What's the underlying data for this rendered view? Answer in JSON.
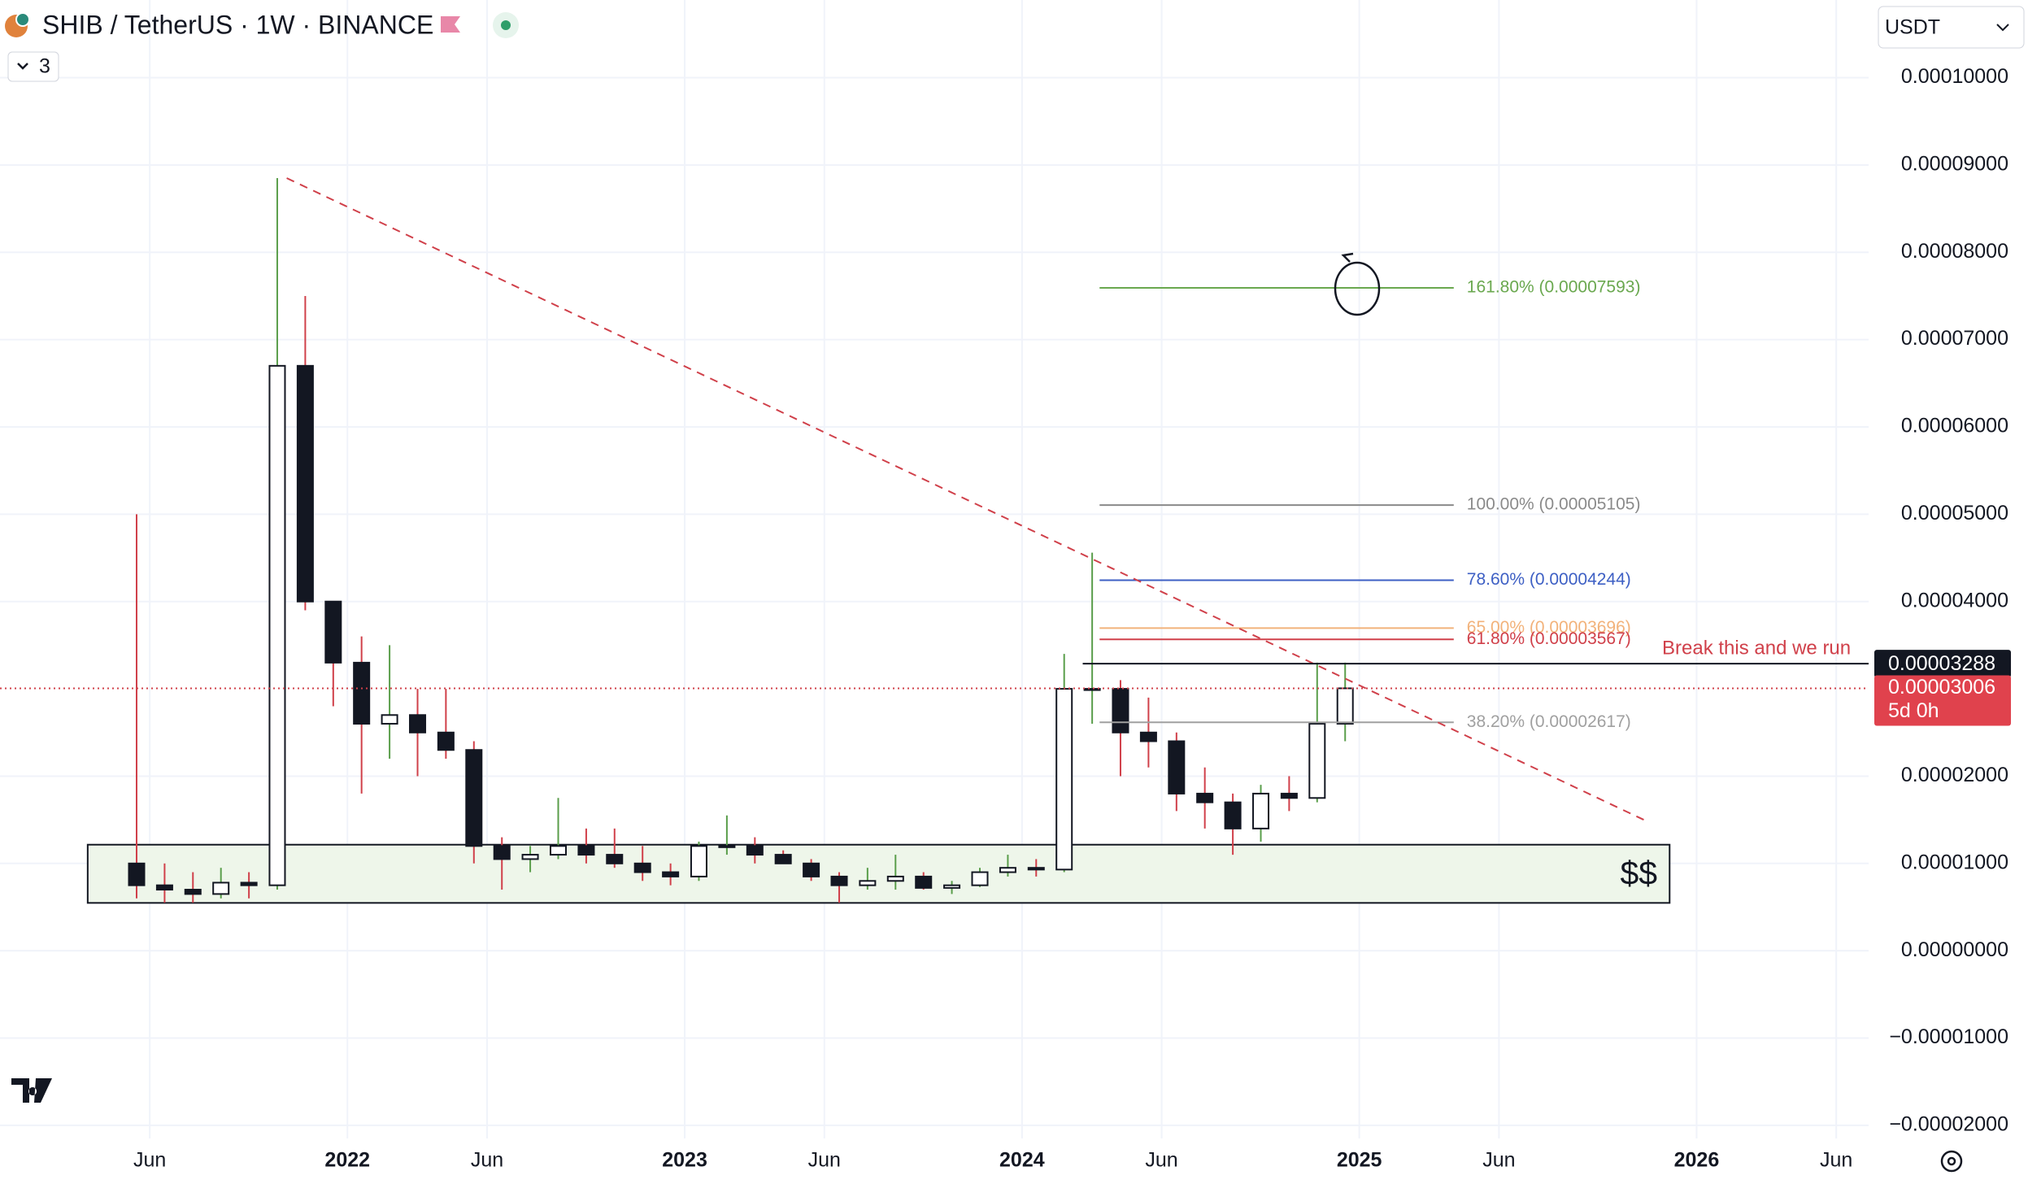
{
  "chart_data": {
    "type": "candlestick",
    "title": "SHIB / TetherUS · 1W · BINANCE",
    "indicator_count": "3",
    "currency": "USDT",
    "grid": true,
    "xlim": [
      2020.97,
      2026.51
    ],
    "ylim": [
      -2.15e-05,
      0.0001089
    ],
    "xticks": [
      {
        "value": 2021.414,
        "label": "Jun"
      },
      2022,
      {
        "value": 2022.414,
        "label": "Jun"
      },
      2023,
      {
        "value": 2023.414,
        "label": "Jun"
      },
      2024,
      {
        "value": 2024.414,
        "label": "Jun"
      },
      2025,
      {
        "value": 2025.414,
        "label": "Jun"
      },
      2026,
      {
        "value": 2026.414,
        "label": "Jun"
      }
    ],
    "yticks": [
      {
        "value": 0.0001,
        "label": "0.00010000"
      },
      {
        "value": 9e-05,
        "label": "0.00009000"
      },
      {
        "value": 8e-05,
        "label": "0.00008000"
      },
      {
        "value": 7e-05,
        "label": "0.00007000"
      },
      {
        "value": 6e-05,
        "label": "0.00006000"
      },
      {
        "value": 5e-05,
        "label": "0.00005000"
      },
      {
        "value": 4e-05,
        "label": "0.00004000"
      },
      {
        "value": 2e-05,
        "label": "0.00002000"
      },
      {
        "value": 1e-05,
        "label": "0.00001000"
      },
      {
        "value": 0,
        "label": "0.00000000"
      },
      {
        "value": -1e-05,
        "label": "−0.00001000"
      },
      {
        "value": -2e-05,
        "label": "−0.00002000"
      }
    ],
    "up_color": "#5a9e4b",
    "down_color": "#d0404a",
    "candles": {
      "x": [
        2021.375,
        2021.458,
        2021.542,
        2021.625,
        2021.708,
        2021.792,
        2021.875,
        2021.958,
        2022.042,
        2022.125,
        2022.208,
        2022.292,
        2022.375,
        2022.458,
        2022.542,
        2022.625,
        2022.708,
        2022.792,
        2022.875,
        2022.958,
        2023.042,
        2023.125,
        2023.208,
        2023.292,
        2023.375,
        2023.458,
        2023.542,
        2023.625,
        2023.708,
        2023.792,
        2023.875,
        2023.958,
        2024.042,
        2024.125,
        2024.208,
        2024.292,
        2024.375,
        2024.458,
        2024.542,
        2024.625,
        2024.708,
        2024.792,
        2024.875,
        2024.958
      ],
      "open": [
        1e-05,
        7.5e-06,
        7e-06,
        6.5e-06,
        7.8e-06,
        7.5e-06,
        6.7e-05,
        4e-05,
        3.3e-05,
        2.6e-05,
        2.7e-05,
        2.5e-05,
        2.3e-05,
        1.2e-05,
        1.05e-05,
        1.1e-05,
        1.2e-05,
        1.1e-05,
        1e-05,
        9e-06,
        8.5e-06,
        1.2e-05,
        1.2e-05,
        1.1e-05,
        1e-05,
        8.5e-06,
        7.5e-06,
        8e-06,
        8.5e-06,
        7.2e-06,
        7.5e-06,
        9e-06,
        9.5e-06,
        9.3e-06,
        3e-05,
        3e-05,
        2.5e-05,
        2.4e-05,
        1.8e-05,
        1.7e-05,
        1.4e-05,
        1.8e-05,
        1.75e-05,
        2.6e-05
      ],
      "high": [
        5e-05,
        1e-05,
        9e-06,
        9.5e-06,
        9e-06,
        8.85e-05,
        7.5e-05,
        4e-05,
        3.6e-05,
        3.5e-05,
        3e-05,
        3e-05,
        2.4e-05,
        1.3e-05,
        1.2e-05,
        1.75e-05,
        1.4e-05,
        1.4e-05,
        1.2e-05,
        1e-05,
        1.25e-05,
        1.55e-05,
        1.3e-05,
        1.15e-05,
        1.05e-05,
        9e-06,
        9.5e-06,
        1.1e-05,
        9e-06,
        8e-06,
        9.5e-06,
        1.1e-05,
        1.05e-05,
        3.4e-05,
        4.56e-05,
        3.1e-05,
        2.9e-05,
        2.5e-05,
        2.1e-05,
        1.8e-05,
        1.9e-05,
        2e-05,
        3.3e-05,
        3.3e-05
      ],
      "low": [
        6e-06,
        5.5e-06,
        5.5e-06,
        6e-06,
        6e-06,
        7e-06,
        3.9e-05,
        2.8e-05,
        1.8e-05,
        2.2e-05,
        2e-05,
        2.2e-05,
        1e-05,
        7e-06,
        9e-06,
        1.05e-05,
        1e-05,
        9.5e-06,
        8e-06,
        7.5e-06,
        8e-06,
        1.1e-05,
        1e-05,
        1e-05,
        8e-06,
        5.5e-06,
        7e-06,
        7e-06,
        7e-06,
        6.5e-06,
        7.3e-06,
        8.5e-06,
        8.5e-06,
        9e-06,
        2.6e-05,
        2e-05,
        2.1e-05,
        1.6e-05,
        1.4e-05,
        1.1e-05,
        1.25e-05,
        1.6e-05,
        1.7e-05,
        2.4e-05
      ],
      "close": [
        7.5e-06,
        7e-06,
        6.5e-06,
        7.8e-06,
        7.5e-06,
        6.7e-05,
        4e-05,
        3.3e-05,
        2.6e-05,
        2.7e-05,
        2.5e-05,
        2.3e-05,
        1.2e-05,
        1.05e-05,
        1.1e-05,
        1.2e-05,
        1.1e-05,
        1e-05,
        9e-06,
        8.5e-06,
        1.2e-05,
        1.2e-05,
        1.1e-05,
        1e-05,
        8.5e-06,
        7.5e-06,
        8e-06,
        8.5e-06,
        7.2e-06,
        7.5e-06,
        9e-06,
        9.5e-06,
        9.3e-06,
        3e-05,
        3e-05,
        2.5e-05,
        2.4e-05,
        1.8e-05,
        1.7e-05,
        1.4e-05,
        1.8e-05,
        1.75e-05,
        2.6e-05,
        3.006e-05
      ]
    },
    "trendline": {
      "x": [
        2021.82,
        2025.86
      ],
      "y": [
        8.85e-05,
        1.47e-05
      ],
      "color": "#d0404a"
    },
    "zone": {
      "x": [
        2021.23,
        2025.92
      ],
      "y": [
        5.48e-06,
        1.215e-05
      ],
      "label": "$$"
    },
    "fib": {
      "x": [
        2024.23,
        2025.28
      ],
      "levels": [
        {
          "value": 7.593e-05,
          "label": "161.80% (0.00007593)",
          "color": "#6aa84f"
        },
        {
          "value": 5.105e-05,
          "label": "100.00% (0.00005105)",
          "color": "#8a8a8a"
        },
        {
          "value": 4.244e-05,
          "label": "78.60% (0.00004244)",
          "color": "#3d5fc4"
        },
        {
          "value": 3.696e-05,
          "label": "65.00% (0.00003696)",
          "color": "#f2b27a"
        },
        {
          "value": 3.567e-05,
          "label": "61.80% (0.00003567)",
          "color": "#d0404a"
        },
        {
          "value": 2.617e-05,
          "label": "38.20% (0.00002617)",
          "color": "#a0a0a0"
        }
      ]
    },
    "level_line": {
      "x_start": 2024.18,
      "value": 3.288e-05,
      "label": "0.00003288"
    },
    "annotation": "Break this and we run",
    "last_price": {
      "value": 3.006e-05,
      "label": "0.00003006",
      "countdown": "5d 0h"
    }
  }
}
